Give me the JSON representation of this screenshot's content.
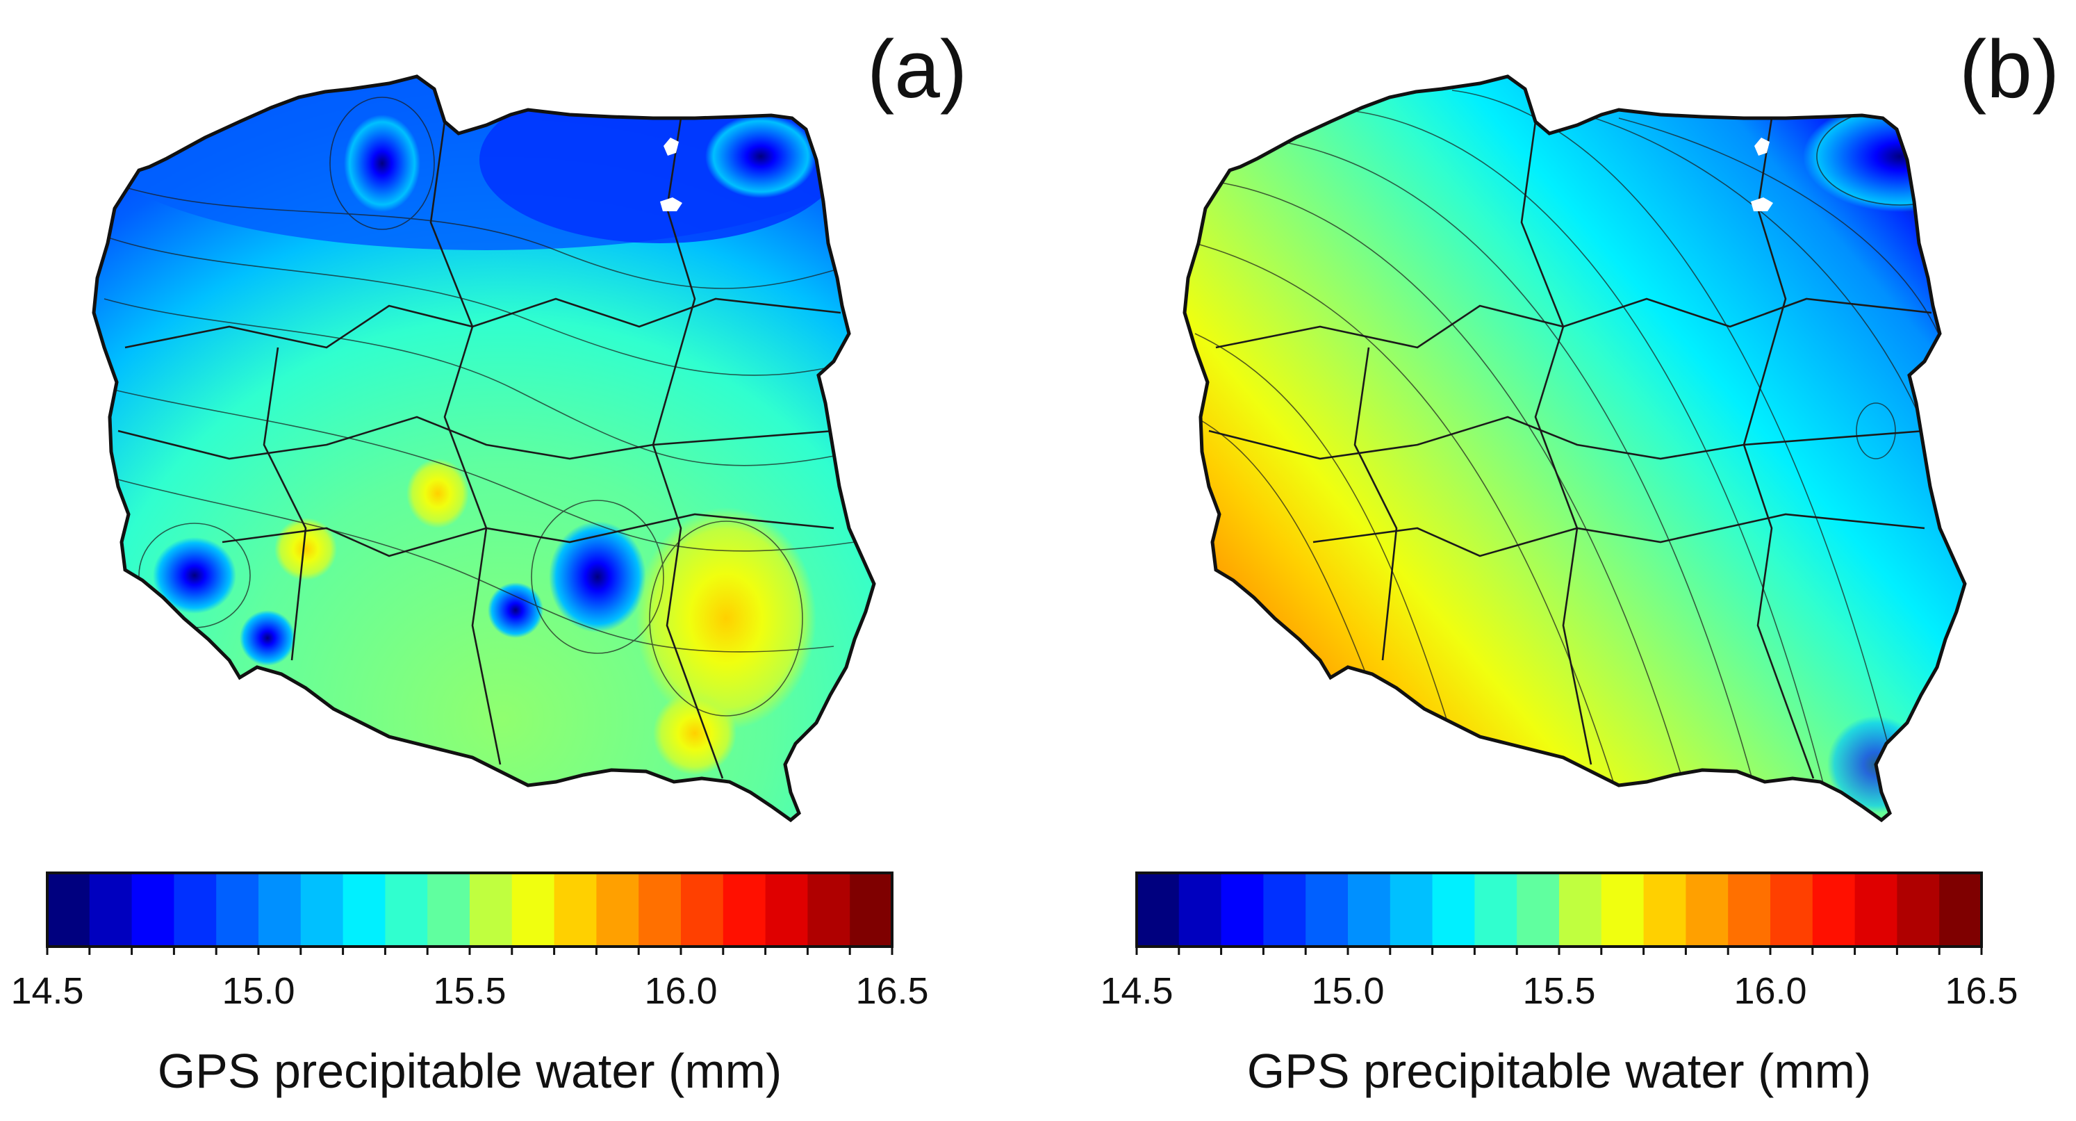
{
  "figure": {
    "panels": [
      {
        "id": "a",
        "label": "(a)",
        "map_region": "Poland",
        "min_value_location": "north (Baltic coast)",
        "max_value_location": "south-east",
        "colorbar": {
          "title": "GPS precipitable water (mm)",
          "min": 14.5,
          "max": 16.5,
          "step": 0.1,
          "tick_values": [
            14.5,
            15.0,
            15.5,
            16.0,
            16.5
          ],
          "tick_labels": [
            "14.5",
            "15.0",
            "15.5",
            "16.0",
            "16.5"
          ]
        }
      },
      {
        "id": "b",
        "label": "(b)",
        "map_region": "Poland",
        "min_value_location": "north-east",
        "max_value_location": "south-west",
        "colorbar": {
          "title": "GPS precipitable water (mm)",
          "min": 14.5,
          "max": 16.5,
          "step": 0.1,
          "tick_values": [
            14.5,
            15.0,
            15.5,
            16.0,
            16.5
          ],
          "tick_labels": [
            "14.5",
            "15.0",
            "15.5",
            "16.0",
            "16.5"
          ]
        }
      }
    ],
    "palette": [
      "#00007f",
      "#0000bf",
      "#0000ff",
      "#0030ff",
      "#0060ff",
      "#0090ff",
      "#00c0ff",
      "#00f0ff",
      "#30ffcf",
      "#60ff9f",
      "#90ff6f",
      "#c0ff3f",
      "#f0ff0f",
      "#ffd000",
      "#ffa000",
      "#ff7000",
      "#ff4000",
      "#ff1000",
      "#df0000",
      "#af0000",
      "#7f0000"
    ],
    "border_color": "#111111",
    "contour_color": "#1a1a1a"
  }
}
